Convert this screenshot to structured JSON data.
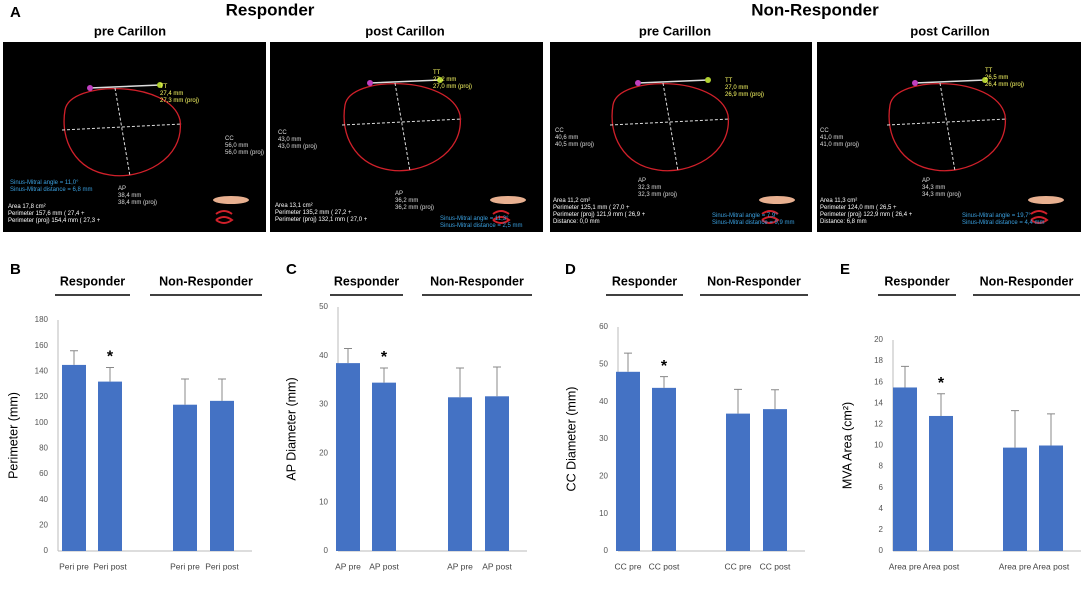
{
  "panel_a": {
    "label": "A",
    "groups": [
      "Responder",
      "Non-Responder"
    ],
    "images": [
      {
        "title": "pre Carillon",
        "overlays": [
          {
            "lines": [
              "TT",
              "27,4 mm",
              "27,3 mm (proj)"
            ]
          },
          {
            "lines": [
              "CC",
              "56,0 mm",
              "56,0 mm (proj)"
            ]
          },
          {
            "lines": [
              "Sinus-Mitral angle = 11,0°",
              "Sinus-Mitral distance = 6,8 mm"
            ]
          },
          {
            "lines": [
              "AP",
              "38,4 mm",
              "38,4 mm (proj)"
            ]
          },
          {
            "lines": [
              "Area      17,8  cm²",
              "Perimeter      157,6 mm  ( 27,4 +",
              "Perimeter (proj) 154,4 mm  ( 27,3 +"
            ]
          }
        ]
      },
      {
        "title": "post Carillon",
        "overlays": [
          {
            "lines": [
              "TT",
              "27,2 mm",
              "27,0 mm (proj)"
            ]
          },
          {
            "lines": [
              "CC",
              "43,0 mm",
              "43,0 mm (proj)"
            ]
          },
          {
            "lines": [
              "Sinus-Mitral angle = 11,3°",
              "Sinus-Mitral distance = 2,5 mm"
            ]
          },
          {
            "lines": [
              "AP",
              "36,2 mm",
              "36,2 mm (proj)"
            ]
          },
          {
            "lines": [
              "Area      13,1  cm²",
              "Perimeter      135,2 mm  ( 27,2 +",
              "Perimeter (proj) 132,1 mm  ( 27,0 +"
            ]
          }
        ]
      },
      {
        "title": "pre Carillon",
        "overlays": [
          {
            "lines": [
              "TT",
              "27,0 mm",
              "26,9 mm (proj)"
            ]
          },
          {
            "lines": [
              "CC",
              "40,6 mm",
              "40,5 mm (proj)"
            ]
          },
          {
            "lines": [
              "Sinus-Mitral angle = 7,9°",
              "Sinus-Mitral distance = 9,9 mm"
            ]
          },
          {
            "lines": [
              "AP",
              "32,3 mm",
              "32,3 mm (proj)"
            ]
          },
          {
            "lines": [
              "Area      11,2  cm²",
              "Perimeter      125,1 mm  ( 27,0 +",
              "Perimeter (proj) 121,9 mm  ( 26,9 +",
              "",
              "Distance: 0,0 mm"
            ]
          }
        ]
      },
      {
        "title": "post Carillon",
        "overlays": [
          {
            "lines": [
              "TT",
              "26,5 mm",
              "26,4 mm (proj)"
            ]
          },
          {
            "lines": [
              "CC",
              "41,0 mm",
              "41,0 mm (proj)"
            ]
          },
          {
            "lines": [
              "Sinus-Mitral angle = 19,7°",
              "Sinus-Mitral distance = 4,4 mm"
            ]
          },
          {
            "lines": [
              "AP",
              "34,3 mm",
              "34,3 mm (proj)"
            ]
          },
          {
            "lines": [
              "Area      11,3  cm²",
              "Perimeter      124,0 mm  ( 26,5 +",
              "Perimeter (proj) 122,9 mm  ( 26,4 +",
              "",
              "Distance: 6,8 mm"
            ]
          }
        ]
      }
    ]
  },
  "chart_data": [
    {
      "type": "bar",
      "panel": "B",
      "group_labels": [
        "Responder",
        "Non-Responder"
      ],
      "ylabel": "Perimeter (mm)",
      "categories": [
        "Peri pre",
        "Peri post",
        "Peri pre",
        "Peri post"
      ],
      "values": [
        145,
        132,
        114,
        117
      ],
      "errors": [
        11,
        11,
        20,
        17
      ],
      "color": "#4472c4",
      "ylim": [
        0,
        180
      ],
      "yticks": [
        0,
        20,
        40,
        60,
        80,
        100,
        120,
        140,
        160,
        180
      ],
      "grid": false,
      "annotation": {
        "text": "*",
        "category": "Peri post"
      }
    },
    {
      "type": "bar",
      "panel": "C",
      "group_labels": [
        "Responder",
        "Non-Responder"
      ],
      "ylabel": "AP Diameter  (mm)",
      "categories": [
        "AP pre",
        "AP post",
        "AP pre",
        "AP post"
      ],
      "values": [
        38.5,
        34.5,
        31.5,
        31.7
      ],
      "errors": [
        3,
        3,
        6,
        6
      ],
      "color": "#4472c4",
      "ylim": [
        0,
        50
      ],
      "yticks": [
        0,
        10,
        20,
        30,
        40,
        50
      ],
      "grid": false,
      "annotation": {
        "text": "*",
        "category": "AP post"
      }
    },
    {
      "type": "bar",
      "panel": "D",
      "group_labels": [
        "Responder",
        "Non-Responder"
      ],
      "ylabel": "CC Diameter  (mm)",
      "categories": [
        "CC pre",
        "CC post",
        "CC pre",
        "CC post"
      ],
      "values": [
        48,
        43.7,
        36.8,
        38
      ],
      "errors": [
        5,
        3,
        6.5,
        5.2
      ],
      "color": "#4472c4",
      "ylim": [
        0,
        60
      ],
      "yticks": [
        0,
        10,
        20,
        30,
        40,
        50,
        60
      ],
      "grid": false,
      "annotation": {
        "text": "*",
        "category": "CC post"
      }
    },
    {
      "type": "bar",
      "panel": "E",
      "group_labels": [
        "Responder",
        "Non-Responder"
      ],
      "ylabel": "MVA Area (cm²)",
      "categories": [
        "Area pre",
        "Area post",
        "Area pre",
        "Area post"
      ],
      "values": [
        15.5,
        12.8,
        9.8,
        10
      ],
      "errors": [
        2,
        2.1,
        3.5,
        3
      ],
      "color": "#4472c4",
      "ylim": [
        0,
        20
      ],
      "yticks": [
        0,
        2,
        4,
        6,
        8,
        10,
        12,
        14,
        16,
        18,
        20
      ],
      "grid": false,
      "annotation": {
        "text": "*",
        "category": "Area post"
      }
    }
  ]
}
